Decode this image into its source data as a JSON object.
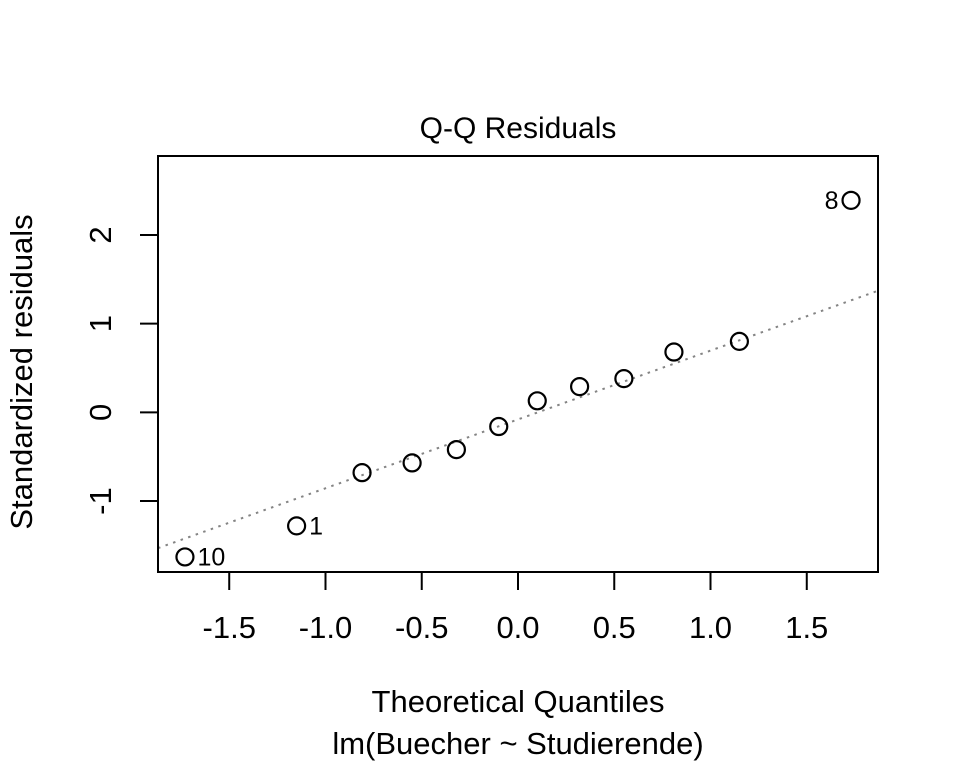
{
  "chart_data": {
    "type": "scatter",
    "title": "Q-Q Residuals",
    "xlabel": "Theoretical Quantiles",
    "xsublabel": "lm(Buecher ~ Studierende)",
    "ylabel": "Standardized residuals",
    "xlim": [
      -1.87,
      1.87
    ],
    "ylim": [
      -1.8,
      2.89
    ],
    "grid": false,
    "legend": null,
    "x_ticks": [
      -1.5,
      -1.0,
      -0.5,
      0.0,
      0.5,
      1.0,
      1.5
    ],
    "x_tick_labels": [
      "-1.5",
      "-1.0",
      "-0.5",
      "0.0",
      "0.5",
      "1.0",
      "1.5"
    ],
    "y_ticks": [
      -1,
      0,
      1,
      2
    ],
    "y_tick_labels": [
      "-1",
      "0",
      "1",
      "2"
    ],
    "points": [
      {
        "x": -1.73,
        "y": -1.63,
        "label": "10",
        "label_side": "right"
      },
      {
        "x": -1.15,
        "y": -1.28,
        "label": "1",
        "label_side": "right"
      },
      {
        "x": -0.81,
        "y": -0.68
      },
      {
        "x": -0.55,
        "y": -0.57
      },
      {
        "x": -0.32,
        "y": -0.42
      },
      {
        "x": -0.1,
        "y": -0.16
      },
      {
        "x": 0.1,
        "y": 0.13
      },
      {
        "x": 0.32,
        "y": 0.29
      },
      {
        "x": 0.55,
        "y": 0.38
      },
      {
        "x": 0.81,
        "y": 0.68
      },
      {
        "x": 1.15,
        "y": 0.8
      },
      {
        "x": 1.73,
        "y": 2.39,
        "label": "8",
        "label_side": "left"
      }
    ],
    "reference_line": {
      "slope": 0.776,
      "intercept": -0.08,
      "style": "dotted"
    },
    "colors": {
      "point": "#000000",
      "reference_line": "#848484",
      "axis": "#000000",
      "text": "#000000",
      "background": "#ffffff"
    }
  }
}
